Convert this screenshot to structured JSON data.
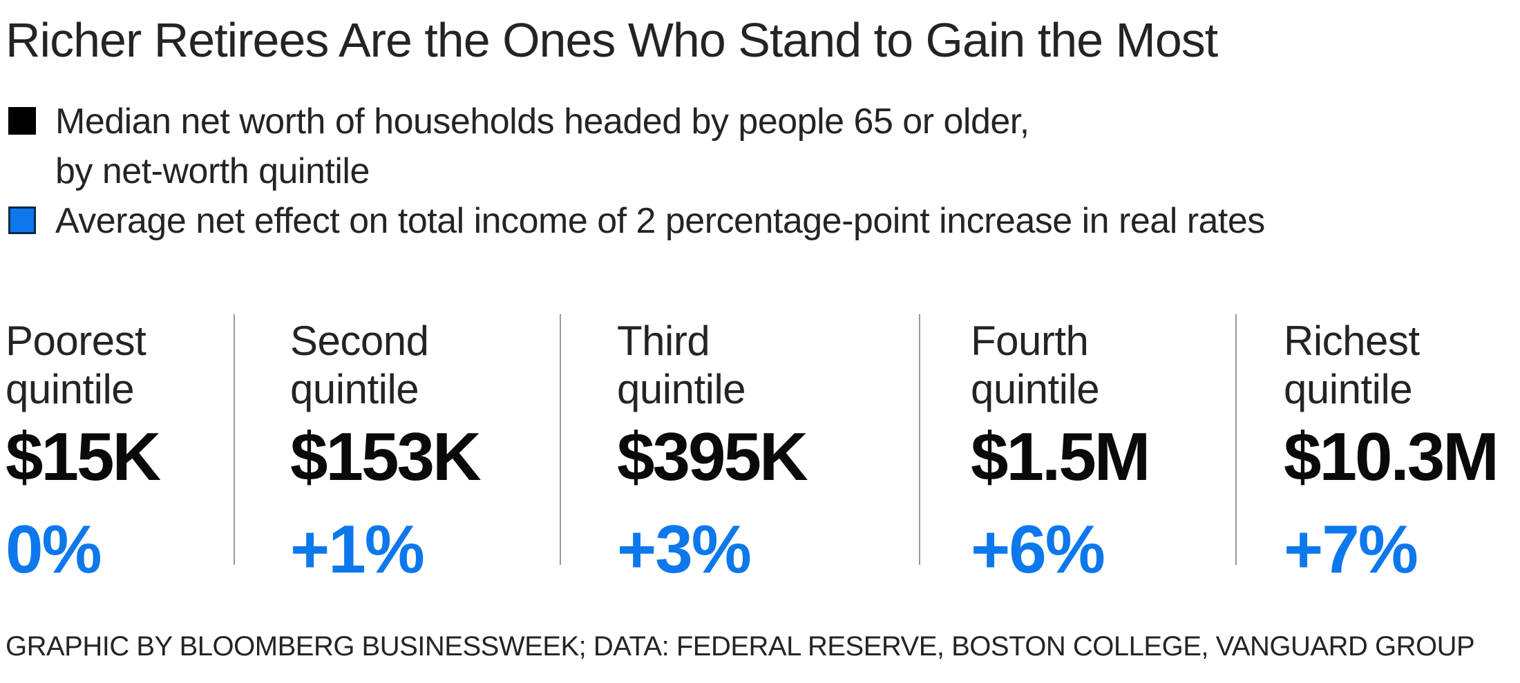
{
  "title": "Richer Retirees Are the Ones Who Stand to Gain the Most",
  "legend": {
    "items": [
      {
        "icon": "black-square",
        "color": "#000000",
        "line1": "Median net worth of households headed by people 65 or older,",
        "line2": "by net-worth quintile"
      },
      {
        "icon": "blue-square",
        "color": "#0d78ec",
        "line1": "Average net effect on total income of 2 percentage-point increase in real rates"
      }
    ]
  },
  "column_labels": [
    {
      "line1": "Poorest",
      "line2": "quintile"
    },
    {
      "line1": "Second",
      "line2": "quintile"
    },
    {
      "line1": "Third",
      "line2": "quintile"
    },
    {
      "line1": "Fourth",
      "line2": "quintile"
    },
    {
      "line1": "Richest",
      "line2": "quintile"
    }
  ],
  "chart_data": {
    "type": "table",
    "title": "Richer Retirees Are the Ones Who Stand to Gain the Most",
    "categories": [
      "Poorest quintile",
      "Second quintile",
      "Third quintile",
      "Fourth quintile",
      "Richest quintile"
    ],
    "series": [
      {
        "name": "Median net worth of households headed by people 65 or older, by net-worth quintile",
        "values": [
          "$15K",
          "$153K",
          "$395K",
          "$1.5M",
          "$10.3M"
        ],
        "values_numeric_usd": [
          15000,
          153000,
          395000,
          1500000,
          10300000
        ],
        "color": "#000000"
      },
      {
        "name": "Average net effect on total income of 2 percentage-point increase in real rates",
        "values": [
          "0%",
          "+1%",
          "+3%",
          "+6%",
          "+7%"
        ],
        "values_numeric_pct": [
          0,
          1,
          3,
          6,
          7
        ],
        "color": "#0d78ec"
      }
    ],
    "legend_position": "top-left",
    "grid": false
  },
  "footer": "GRAPHIC BY BLOOMBERG BUSINESSWEEK; DATA: FEDERAL RESERVE, BOSTON COLLEGE, VANGUARD GROUP",
  "colors": {
    "background": "#ffffff",
    "text_black": "#242424",
    "value_black": "#0a0a0a",
    "accent_blue": "#0d78ec",
    "divider_gray": "#999999"
  }
}
